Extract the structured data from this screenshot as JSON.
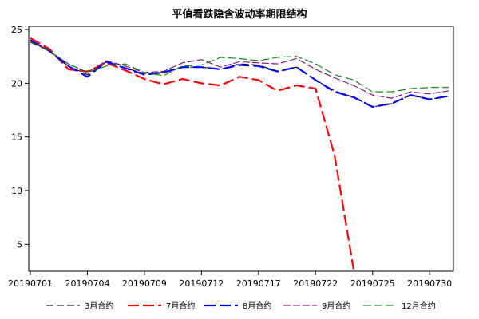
{
  "chart_data": {
    "type": "line",
    "title": "平值看跌隐含波动率期限结构",
    "xlabel": "",
    "ylabel": "",
    "x": [
      "20190701",
      "20190702",
      "20190703",
      "20190704",
      "20190705",
      "20190708",
      "20190709",
      "20190710",
      "20190711",
      "20190712",
      "20190715",
      "20190716",
      "20190717",
      "20190718",
      "20190719",
      "20190722",
      "20190723",
      "20190724",
      "20190725",
      "20190726",
      "20190729",
      "20190730",
      "20190731"
    ],
    "x_ticks": [
      "20190701",
      "20190704",
      "20190709",
      "20190712",
      "20190717",
      "20190722",
      "20190725",
      "20190730"
    ],
    "y_ticks": [
      5,
      10,
      15,
      20,
      25
    ],
    "ylim": [
      2.5,
      25.3
    ],
    "grid": false,
    "legend_position": "bottom",
    "series": [
      {
        "name": "3月合约",
        "color": "#000000",
        "dash": "9,4",
        "values": [
          24.0,
          23.0,
          21.6,
          20.8,
          22.0,
          21.4,
          20.9,
          21.0,
          21.5,
          21.5,
          21.3,
          21.8,
          21.7,
          21.1,
          21.5,
          20.3,
          19.3,
          18.7,
          17.8,
          18.1,
          18.9,
          18.5,
          18.8
        ]
      },
      {
        "name": "7月合约",
        "color": "#ff0000",
        "dash": "14,5",
        "values": [
          24.2,
          23.2,
          21.3,
          21.1,
          21.9,
          21.2,
          20.4,
          19.9,
          20.4,
          20.0,
          19.8,
          20.6,
          20.3,
          19.3,
          19.8,
          19.5,
          13.3,
          2.7,
          null,
          null,
          null,
          null,
          null
        ]
      },
      {
        "name": "8月合约",
        "color": "#0000ff",
        "dash": "14,5",
        "values": [
          24.0,
          23.0,
          21.6,
          20.6,
          22.0,
          21.4,
          20.8,
          21.0,
          21.5,
          21.5,
          21.3,
          21.7,
          21.6,
          21.1,
          21.5,
          20.3,
          19.2,
          18.7,
          17.8,
          18.1,
          18.9,
          18.5,
          18.8
        ]
      },
      {
        "name": "9月合约",
        "color": "#800080",
        "dash": "9,3",
        "values": [
          23.9,
          23.0,
          21.8,
          21.0,
          22.1,
          21.6,
          21.0,
          21.1,
          21.9,
          22.2,
          21.5,
          22.0,
          21.9,
          21.8,
          22.3,
          21.3,
          20.5,
          19.8,
          18.9,
          18.6,
          19.2,
          19.0,
          19.3
        ]
      },
      {
        "name": "12月合约",
        "color": "#008000",
        "dash": "10,4",
        "values": [
          23.8,
          23.0,
          21.8,
          21.0,
          21.6,
          21.8,
          21.0,
          20.7,
          21.6,
          21.7,
          22.4,
          22.3,
          22.1,
          22.4,
          22.5,
          21.8,
          20.8,
          20.3,
          19.2,
          19.2,
          19.5,
          19.6,
          19.6
        ]
      }
    ]
  }
}
